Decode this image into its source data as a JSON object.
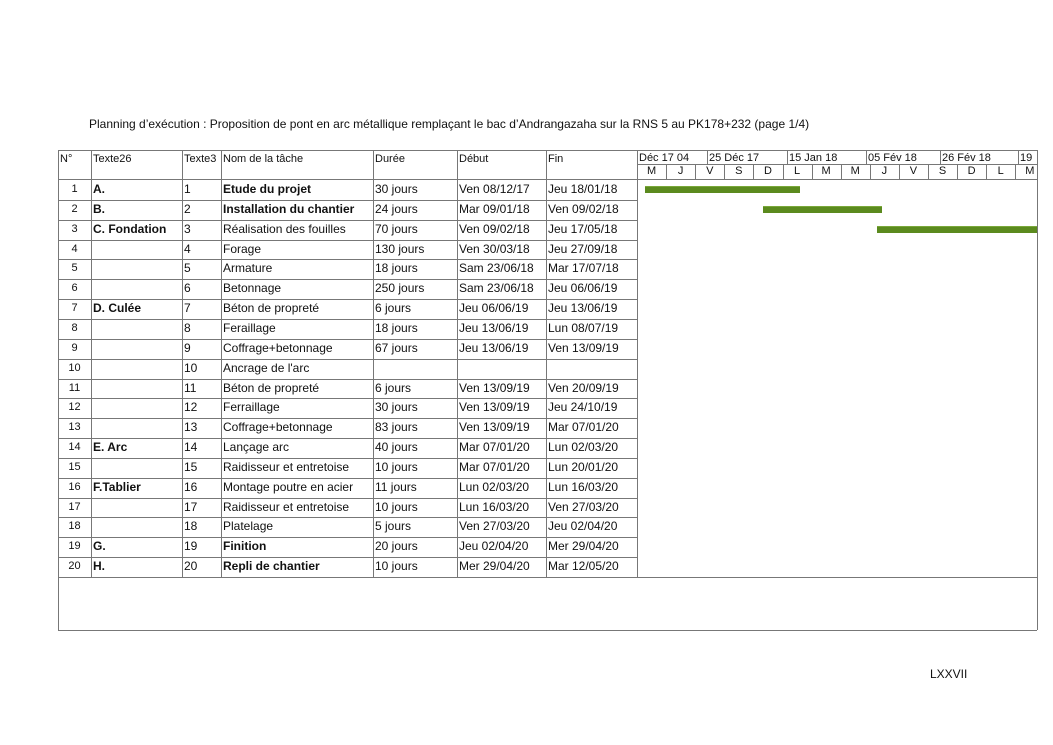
{
  "title": "Planning d’exécution : Proposition de pont en arc métallique remplaçant le bac d’Andrangazaha sur la RNS 5 au PK178+232  (page 1/4)",
  "table": {
    "headers": [
      "N°",
      "Texte26",
      "Texte3",
      "Nom de la tâche",
      "Durée",
      "Début",
      "Fin"
    ],
    "rows": [
      {
        "n": "1",
        "group": "A.",
        "id": "1",
        "name": "Etude du projet",
        "duration": "30 jours",
        "start": "Ven 08/12/17",
        "end": "Jeu 18/01/18",
        "bold": true
      },
      {
        "n": "2",
        "group": "B.",
        "id": "2",
        "name": "Installation du chantier",
        "duration": "24 jours",
        "start": "Mar 09/01/18",
        "end": "Ven 09/02/18",
        "bold": true
      },
      {
        "n": "3",
        "group": "C. Fondation",
        "id": "3",
        "name": "Réalisation des fouilles",
        "duration": "70 jours",
        "start": "Ven 09/02/18",
        "end": "Jeu 17/05/18"
      },
      {
        "n": "4",
        "id": "4",
        "name": "Forage",
        "duration": "130 jours",
        "start": "Ven 30/03/18",
        "end": "Jeu 27/09/18"
      },
      {
        "n": "5",
        "id": "5",
        "name": "Armature",
        "duration": "18 jours",
        "start": "Sam 23/06/18",
        "end": "Mar 17/07/18"
      },
      {
        "n": "6",
        "id": "6",
        "name": "Betonnage",
        "duration": "250 jours",
        "start": "Sam 23/06/18",
        "end": "Jeu 06/06/19"
      },
      {
        "n": "7",
        "group": "D. Culée",
        "id": "7",
        "name": "Béton de propreté",
        "duration": "6 jours",
        "start": "Jeu 06/06/19",
        "end": "Jeu 13/06/19"
      },
      {
        "n": "8",
        "id": "8",
        "name": "Feraillage",
        "duration": "18 jours",
        "start": "Jeu 13/06/19",
        "end": "Lun 08/07/19"
      },
      {
        "n": "9",
        "id": "9",
        "name": "Coffrage+betonnage",
        "duration": "67 jours",
        "start": "Jeu 13/06/19",
        "end": "Ven 13/09/19"
      },
      {
        "n": "10",
        "id": "10",
        "name": "Ancrage de l'arc"
      },
      {
        "n": "11",
        "id": "11",
        "name": "Béton de propreté",
        "duration": "6 jours",
        "start": "Ven 13/09/19",
        "end": "Ven 20/09/19"
      },
      {
        "n": "12",
        "id": "12",
        "name": "Ferraillage",
        "duration": "30 jours",
        "start": "Ven 13/09/19",
        "end": "Jeu 24/10/19"
      },
      {
        "n": "13",
        "id": "13",
        "name": "Coffrage+betonnage",
        "duration": "83 jours",
        "start": "Ven 13/09/19",
        "end": "Mar 07/01/20"
      },
      {
        "n": "14",
        "group": "E. Arc",
        "id": "14",
        "name": "Lançage arc",
        "duration": "40 jours",
        "start": "Mar 07/01/20",
        "end": "Lun 02/03/20"
      },
      {
        "n": "15",
        "id": "15",
        "name": "Raidisseur et entretoise",
        "duration": "10 jours",
        "start": "Mar 07/01/20",
        "end": "Lun 20/01/20"
      },
      {
        "n": "16",
        "group": "F.Tablier",
        "id": "16",
        "name": "Montage poutre en acier",
        "duration": "11 jours",
        "start": "Lun 02/03/20",
        "end": "Lun 16/03/20"
      },
      {
        "n": "17",
        "id": "17",
        "name": "Raidisseur et entretoise",
        "duration": "10 jours",
        "start": "Lun 16/03/20",
        "end": "Ven 27/03/20"
      },
      {
        "n": "18",
        "id": "18",
        "name": "Platelage",
        "duration": "5 jours",
        "start": "Ven 27/03/20",
        "end": "Jeu 02/04/20"
      },
      {
        "n": "19",
        "group": "G.",
        "id": "19",
        "name": "Finition",
        "duration": "20 jours",
        "start": "Jeu 02/04/20",
        "end": "Mer 29/04/20",
        "bold": true
      },
      {
        "n": "20",
        "group": "H.",
        "id": "20",
        "name": "Repli de chantier",
        "duration": "10 jours",
        "start": "Mer 29/04/20",
        "end": "Mar 12/05/20",
        "bold": true
      }
    ]
  },
  "timeline": {
    "weeks": [
      "04 Déc 17",
      "25 Déc 17",
      "15 Jan 18",
      "05 Fév 18",
      "26 Fév 18",
      "19"
    ],
    "days": [
      "M",
      "J",
      "V",
      "S",
      "D",
      "L",
      "M",
      "M",
      "J",
      "V",
      "S",
      "D",
      "L",
      "M"
    ]
  },
  "footer": "LXXVII"
}
